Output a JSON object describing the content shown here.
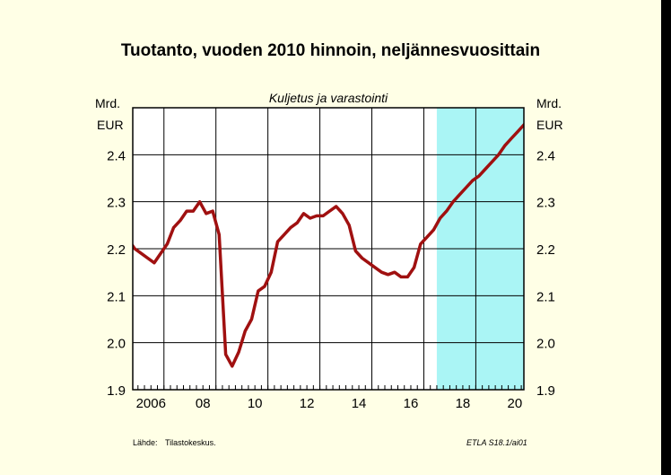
{
  "title": "Tuotanto, vuoden 2010 hinnoin, neljännesvuosittain",
  "source": {
    "label": "Lähde:",
    "value": "Tilastokeskus."
  },
  "code": "ETLA S18.1/ai01",
  "colors": {
    "background": "#ffffe6",
    "forecast_shade": "#aaf5f5",
    "series": "#a01010",
    "frame": "#000000"
  },
  "chart_data": {
    "type": "line",
    "title": "Tuotanto, vuoden 2010 hinnoin, neljännesvuosittain",
    "subtitle": "Kuljetus ja varastointi",
    "ylabel_left": [
      "Mrd.",
      "EUR"
    ],
    "ylabel_right": [
      "Mrd.",
      "EUR"
    ],
    "xlim": [
      2005.8,
      2020.85
    ],
    "ylim": [
      1.9,
      2.5
    ],
    "yticks": [
      1.9,
      2.0,
      2.1,
      2.2,
      2.3,
      2.4
    ],
    "ytick_labels": [
      "1.9",
      "2.0",
      "2.1",
      "2.2",
      "2.3",
      "2.4"
    ],
    "xticks": [
      2006,
      2008,
      2010,
      2012,
      2014,
      2016,
      2018,
      2020
    ],
    "xtick_labels": [
      "2006",
      "08",
      "10",
      "12",
      "14",
      "16",
      "18",
      "20"
    ],
    "grid": true,
    "forecast_start": 2017.5,
    "series": [
      {
        "x": [
          2005.625,
          2005.875,
          2006.125,
          2006.375,
          2006.625,
          2006.875,
          2007.125,
          2007.375,
          2007.625,
          2007.875,
          2008.125,
          2008.375,
          2008.625,
          2008.875,
          2009.125,
          2009.375,
          2009.625,
          2009.875,
          2010.125,
          2010.375,
          2010.625,
          2010.875,
          2011.125,
          2011.375,
          2011.625,
          2011.875,
          2012.125,
          2012.375,
          2012.625,
          2012.875,
          2013.125,
          2013.375,
          2013.625,
          2013.875,
          2014.125,
          2014.375,
          2014.625,
          2014.875,
          2015.125,
          2015.375,
          2015.625,
          2015.875,
          2016.125,
          2016.375,
          2016.625,
          2016.875,
          2017.125,
          2017.375,
          2017.625,
          2017.875,
          2018.125,
          2018.375,
          2018.625,
          2018.875,
          2019.125,
          2019.375,
          2019.625,
          2019.875,
          2020.125,
          2020.375,
          2020.625,
          2020.875
        ],
        "values": [
          2.22,
          2.2,
          2.19,
          2.18,
          2.17,
          2.19,
          2.21,
          2.245,
          2.26,
          2.28,
          2.28,
          2.3,
          2.275,
          2.28,
          2.23,
          1.975,
          1.95,
          1.98,
          2.025,
          2.05,
          2.11,
          2.12,
          2.15,
          2.215,
          2.23,
          2.245,
          2.255,
          2.275,
          2.265,
          2.27,
          2.27,
          2.28,
          2.29,
          2.275,
          2.25,
          2.195,
          2.18,
          2.17,
          2.16,
          2.15,
          2.145,
          2.15,
          2.14,
          2.14,
          2.16,
          2.21,
          2.225,
          2.24,
          2.265,
          2.28,
          2.3,
          2.315,
          2.33,
          2.345,
          2.355,
          2.37,
          2.385,
          2.4,
          2.42,
          2.435,
          2.45,
          2.465
        ]
      }
    ]
  }
}
